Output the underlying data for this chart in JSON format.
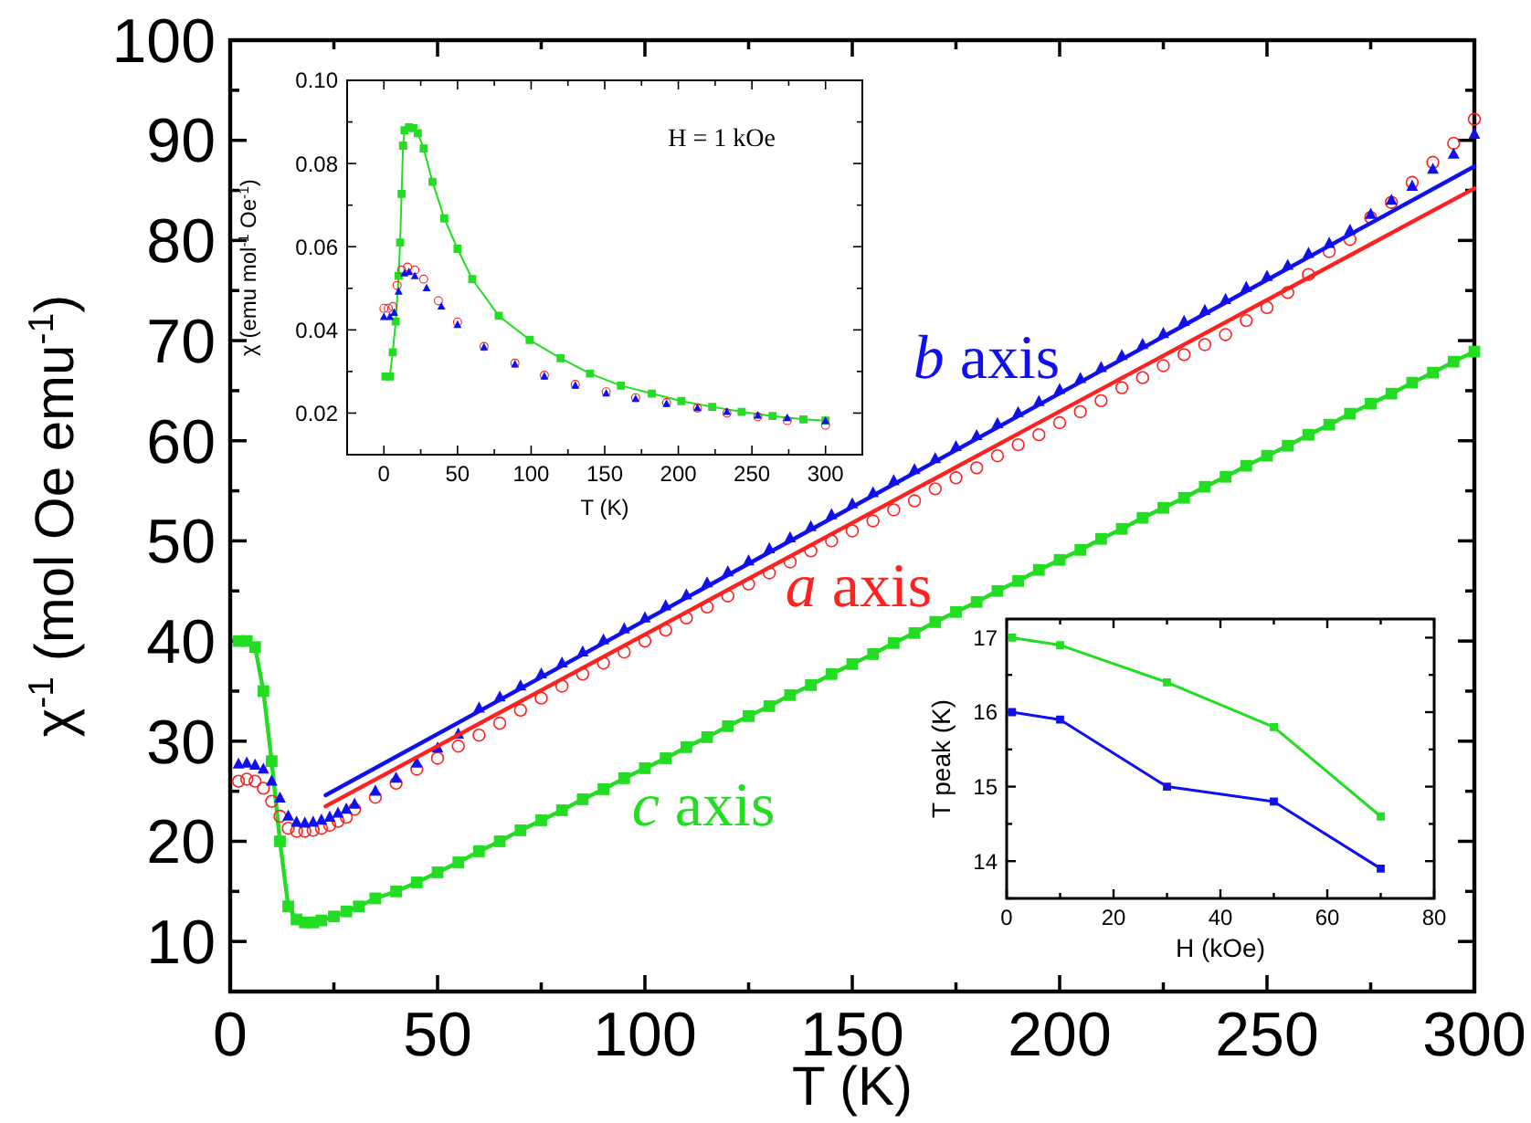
{
  "chart_data": [
    {
      "type": "scatter",
      "xlabel": "T (K)",
      "ylabel": "χ$^{-1}$ (mol Oe emu$^{-1}$)",
      "xlim": [
        0,
        300
      ],
      "ylim": [
        5,
        100
      ],
      "xticks": [
        0,
        {
          "value": 25,
          "label": null
        },
        50,
        {
          "value": 75,
          "label": null
        },
        100,
        {
          "value": 125,
          "label": null
        },
        150,
        {
          "value": 175,
          "label": null
        },
        200,
        {
          "value": 225,
          "label": null
        },
        250,
        {
          "value": 275,
          "label": null
        },
        300
      ],
      "yticks": [
        {
          "value": 5,
          "label": null
        },
        10,
        {
          "value": 15,
          "label": null
        },
        20,
        {
          "value": 25,
          "label": null
        },
        30,
        {
          "value": 35,
          "label": null
        },
        40,
        {
          "value": 45,
          "label": null
        },
        50,
        {
          "value": 55,
          "label": null
        },
        60,
        {
          "value": 65,
          "label": null
        },
        70,
        {
          "value": 75,
          "label": null
        },
        80,
        {
          "value": 85,
          "label": null
        },
        90,
        {
          "value": 95,
          "label": null
        },
        100
      ],
      "series": [
        {
          "name": "c axis",
          "type": "line",
          "marker": "square",
          "color": "#22dd22",
          "x": [
            2,
            4,
            6,
            8,
            10,
            12,
            14,
            16,
            18,
            20,
            22,
            25,
            28,
            31,
            35,
            40,
            45,
            50,
            55,
            60,
            65,
            70,
            75,
            80,
            85,
            90,
            95,
            100,
            105,
            110,
            115,
            120,
            125,
            130,
            135,
            140,
            145,
            150,
            155,
            160,
            165,
            170,
            175,
            180,
            185,
            190,
            195,
            200,
            205,
            210,
            215,
            220,
            225,
            230,
            235,
            240,
            245,
            250,
            255,
            260,
            265,
            270,
            275,
            280,
            285,
            290,
            295,
            300
          ],
          "values": [
            40,
            40,
            39.4,
            35,
            28,
            20,
            13.5,
            12.2,
            11.9,
            11.9,
            12.1,
            12.5,
            13.0,
            13.5,
            14.3,
            15.0,
            15.9,
            16.9,
            17.9,
            19.0,
            20.0,
            21.1,
            22.1,
            23.1,
            24.2,
            25.2,
            26.3,
            27.3,
            28.3,
            29.4,
            30.4,
            31.5,
            32.5,
            33.5,
            34.6,
            35.6,
            36.7,
            37.7,
            38.7,
            39.8,
            40.8,
            41.9,
            42.9,
            43.9,
            45.0,
            46.0,
            47.1,
            48.1,
            49.1,
            50.2,
            51.2,
            52.3,
            53.3,
            54.3,
            55.4,
            56.4,
            57.5,
            58.5,
            59.5,
            60.6,
            61.6,
            62.7,
            63.7,
            64.7,
            65.8,
            66.8,
            67.9,
            68.9
          ]
        },
        {
          "name": "a axis",
          "marker": "circle",
          "color": "#ff2020",
          "x": [
            2,
            4,
            6,
            8,
            10,
            12,
            14,
            16,
            18,
            20,
            22,
            24,
            26,
            28,
            30,
            35,
            40,
            45,
            50,
            55,
            60,
            65,
            70,
            75,
            80,
            85,
            90,
            95,
            100,
            105,
            110,
            115,
            120,
            125,
            130,
            135,
            140,
            145,
            150,
            155,
            160,
            165,
            170,
            175,
            180,
            185,
            190,
            195,
            200,
            205,
            210,
            215,
            220,
            225,
            230,
            235,
            240,
            245,
            250,
            255,
            260,
            265,
            270,
            275,
            280,
            285,
            290,
            295,
            300
          ],
          "values": [
            26,
            26.2,
            26.0,
            25.3,
            24,
            22.5,
            21.3,
            21.0,
            21.0,
            21.1,
            21.3,
            21.6,
            22.0,
            22.4,
            23.2,
            24.4,
            25.8,
            27.2,
            28.3,
            29.5,
            30.6,
            31.8,
            33.1,
            34.3,
            35.5,
            36.7,
            37.8,
            38.9,
            40.0,
            41.1,
            42.3,
            43.4,
            44.5,
            45.7,
            46.8,
            47.9,
            49.0,
            50.0,
            51.0,
            52.0,
            53.1,
            54.0,
            55.2,
            56.3,
            57.3,
            58.5,
            59.6,
            60.6,
            61.8,
            62.9,
            64.0,
            65.3,
            66.3,
            67.5,
            68.6,
            69.6,
            70.6,
            72.0,
            73.3,
            74.8,
            76.6,
            78.9,
            80.1,
            82.3,
            83.8,
            85.8,
            87.8,
            89.7,
            92.1
          ]
        },
        {
          "name": "b axis",
          "marker": "triangle",
          "color": "#1010ee",
          "x": [
            2,
            4,
            6,
            8,
            10,
            12,
            14,
            16,
            18,
            20,
            22,
            24,
            26,
            28,
            30,
            35,
            40,
            45,
            50,
            55,
            60,
            65,
            70,
            75,
            80,
            85,
            90,
            95,
            100,
            105,
            110,
            115,
            120,
            125,
            130,
            135,
            140,
            145,
            150,
            155,
            160,
            165,
            170,
            175,
            180,
            185,
            190,
            195,
            200,
            205,
            210,
            215,
            220,
            225,
            230,
            235,
            240,
            245,
            250,
            255,
            260,
            265,
            270,
            275,
            280,
            285,
            290,
            295,
            300
          ],
          "values": [
            27.7,
            27.8,
            27.6,
            27.2,
            26,
            24.3,
            22.5,
            21.9,
            21.8,
            21.9,
            22.1,
            22.4,
            22.8,
            23.2,
            23.7,
            25.0,
            26.3,
            27.8,
            29.3,
            30.7,
            33.3,
            34.4,
            35.5,
            36.7,
            37.8,
            38.9,
            40.1,
            41.2,
            42.3,
            43.5,
            44.6,
            45.8,
            46.9,
            48.0,
            49.2,
            50.3,
            51.4,
            52.6,
            53.7,
            54.8,
            56.0,
            57.1,
            58.2,
            59.4,
            60.5,
            61.7,
            62.8,
            63.9,
            65.1,
            66.2,
            67.3,
            68.5,
            69.6,
            70.7,
            71.9,
            73.0,
            74.1,
            75.3,
            76.4,
            77.5,
            78.7,
            79.7,
            81.0,
            82.6,
            84.0,
            85.4,
            87.1,
            88.6,
            90.6
          ]
        },
        {
          "type": "line",
          "marker": "none",
          "color": "#ff2020",
          "x": [
            23,
            300
          ],
          "values": [
            23.5,
            85.2
          ]
        },
        {
          "type": "line",
          "marker": "none",
          "color": "#1010ee",
          "x": [
            23,
            300
          ],
          "values": [
            24.6,
            87.4
          ]
        }
      ]
    },
    {
      "type": "scatter",
      "xlabel": "T (K)",
      "ylabel": "χ (emu mol$^{-1}$ Oe$^{-1}$)",
      "annotations": [
        "H = 1 kOe"
      ],
      "xlim": [
        -25,
        325
      ],
      "ylim": [
        0.01,
        0.1
      ],
      "xticks": [
        {
          "value": -25,
          "label": null
        },
        0,
        {
          "value": 25,
          "label": null
        },
        50,
        {
          "value": 75,
          "label": null
        },
        100,
        {
          "value": 125,
          "label": null
        },
        150,
        {
          "value": 175,
          "label": null
        },
        200,
        {
          "value": 225,
          "label": null
        },
        250,
        {
          "value": 275,
          "label": null
        },
        300
      ],
      "yticks": [
        0.02,
        {
          "value": 0.03,
          "label": null
        },
        0.04,
        {
          "value": 0.05,
          "label": null
        },
        0.06,
        {
          "value": 0.07,
          "label": null
        },
        0.08,
        {
          "value": 0.09,
          "label": null
        },
        {
          "value": 0.1,
          "label": "0.10"
        }
      ],
      "series": [
        {
          "type": "line",
          "marker": "square",
          "color": "#22dd22",
          "x": [
            1,
            4,
            6,
            8,
            10,
            11,
            12,
            13,
            14,
            17,
            20,
            23,
            27,
            33,
            41,
            50,
            60,
            78,
            99,
            120,
            140,
            161,
            182,
            202,
            223,
            243,
            264,
            285,
            300
          ],
          "values": [
            0.0288,
            0.0288,
            0.0346,
            0.042,
            0.053,
            0.061,
            0.0727,
            0.0843,
            0.088,
            0.0887,
            0.0885,
            0.0873,
            0.0836,
            0.0756,
            0.0668,
            0.0595,
            0.0522,
            0.0434,
            0.0376,
            0.0332,
            0.0295,
            0.0266,
            0.0247,
            0.0229,
            0.0215,
            0.0203,
            0.0193,
            0.0185,
            0.0182
          ]
        },
        {
          "marker": "circle",
          "color": "#ff2020",
          "x": [
            0,
            3,
            6,
            9,
            12,
            16,
            21,
            27,
            37,
            50,
            68,
            89,
            109,
            130,
            151,
            171,
            192,
            213,
            233,
            254,
            274,
            300
          ],
          "values": [
            0.0452,
            0.0452,
            0.0456,
            0.0507,
            0.0544,
            0.0551,
            0.0544,
            0.0522,
            0.047,
            0.0419,
            0.036,
            0.032,
            0.0291,
            0.0269,
            0.0251,
            0.0237,
            0.0225,
            0.0212,
            0.02,
            0.0191,
            0.0182,
            0.0171
          ]
        },
        {
          "marker": "triangle",
          "color": "#1010ee",
          "x": [
            0,
            4,
            7,
            10,
            14,
            17,
            21,
            29,
            39,
            50,
            68,
            89,
            109,
            130,
            151,
            171,
            192,
            213,
            233,
            254,
            274,
            300
          ],
          "values": [
            0.0431,
            0.0431,
            0.0441,
            0.0492,
            0.0536,
            0.0539,
            0.0529,
            0.05,
            0.0456,
            0.0412,
            0.0358,
            0.0317,
            0.0288,
            0.0266,
            0.0247,
            0.0234,
            0.0222,
            0.0212,
            0.0203,
            0.0194,
            0.0188,
            0.0181
          ]
        }
      ]
    },
    {
      "type": "line",
      "marker": "square",
      "xlabel": "H (kOe)",
      "ylabel": "T peak (K)",
      "xlim": [
        0,
        80
      ],
      "ylim": [
        13.5,
        17.25
      ],
      "xticks": [
        0,
        {
          "value": 10,
          "label": null
        },
        20,
        {
          "value": 30,
          "label": null
        },
        40,
        {
          "value": 50,
          "label": null
        },
        60,
        {
          "value": 70,
          "label": null
        },
        80
      ],
      "yticks": [
        {
          "value": 13.5,
          "label": null
        },
        14,
        {
          "value": 14.5,
          "label": null
        },
        15,
        {
          "value": 15.5,
          "label": null
        },
        16,
        {
          "value": 16.5,
          "label": null
        },
        17
      ],
      "series": [
        {
          "color": "#22dd22",
          "x": [
            1,
            10,
            30,
            50,
            70
          ],
          "values": [
            17.0,
            16.9,
            16.4,
            15.8,
            14.6
          ]
        },
        {
          "color": "#1010ee",
          "x": [
            1,
            10,
            30,
            50,
            70
          ],
          "values": [
            16.0,
            15.9,
            15.0,
            14.8,
            13.9
          ]
        }
      ]
    }
  ]
}
